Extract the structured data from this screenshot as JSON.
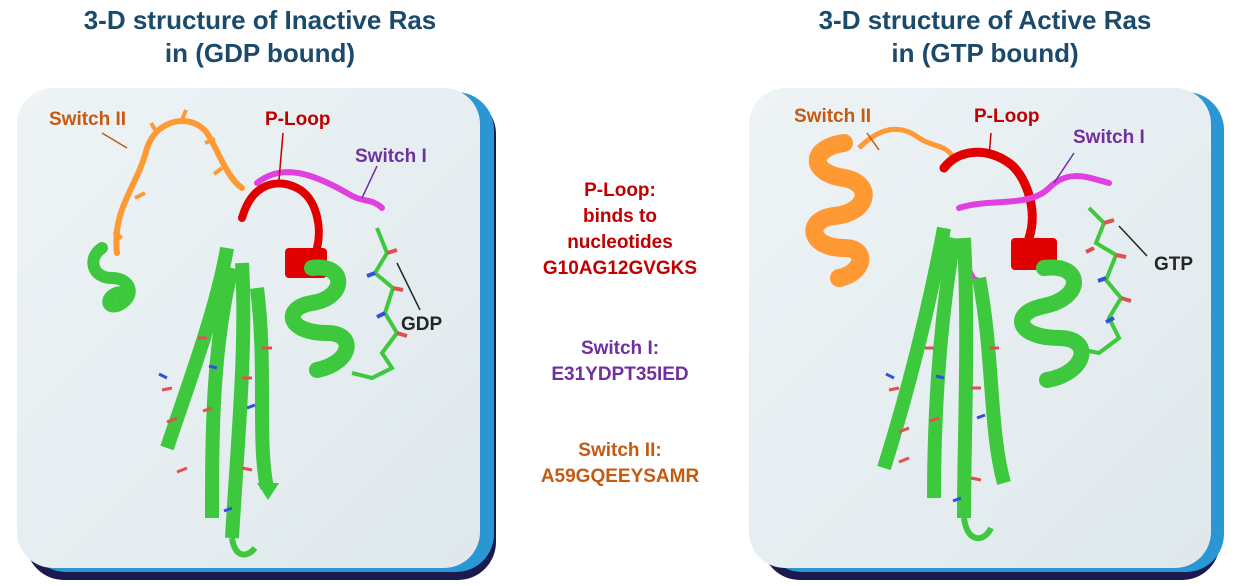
{
  "left": {
    "title_line1": "3-D structure of Inactive Ras",
    "title_line2": "in (GDP bound)",
    "labels": {
      "switch2": "Switch II",
      "ploop": "P-Loop",
      "switch1": "Switch I",
      "ligand": "GDP"
    }
  },
  "right": {
    "title_line1": "3-D structure of Active Ras",
    "title_line2": "in (GTP bound)",
    "labels": {
      "switch2": "Switch II",
      "ploop": "P-Loop",
      "switch1": "Switch I",
      "ligand": "GTP"
    }
  },
  "center": {
    "ploop": [
      "P-Loop:",
      "binds to",
      "nucleotides",
      "G10AG12GVGKS"
    ],
    "switch1": [
      "Switch I:",
      "E31YDPT35IED"
    ],
    "switch2": [
      "Switch II:",
      "A59GQEEYSAMR"
    ]
  },
  "colors": {
    "title": "#1b4a6b",
    "ploop": "#c00000",
    "switch1": "#7030a0",
    "switch2": "#c55a11",
    "ligand_label": "#262626",
    "sheet": "#3ec83e",
    "orange_residue": "#ff9933",
    "magenta_residue": "#e040e0",
    "red_residue": "#e00000",
    "panel_border": "#2a97d4",
    "panel_shadow": "#1a1a4f"
  }
}
